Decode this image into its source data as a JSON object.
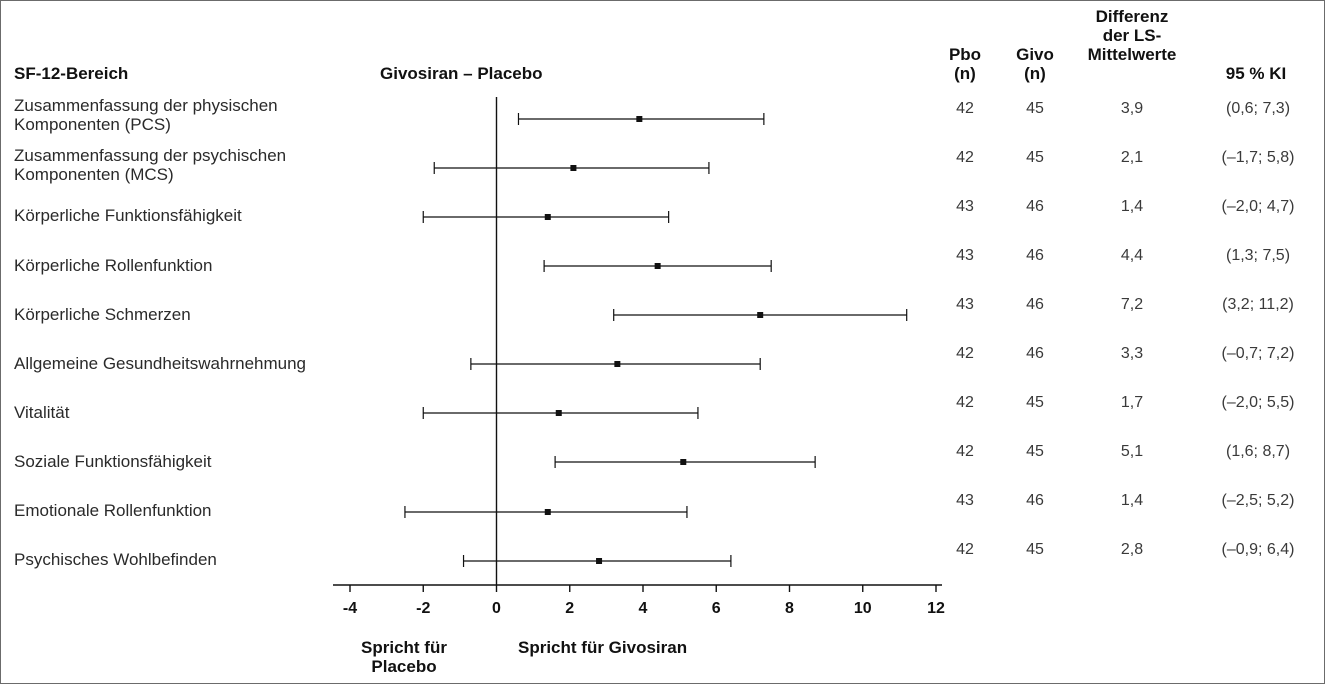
{
  "headers": {
    "domain": "SF-12-Bereich",
    "comparison": "Givosiran – Placebo",
    "pbo": "Pbo\n(n)",
    "givo": "Givo\n(n)",
    "diff": "Differenz\nder LS-\nMittelwerte",
    "ci": "95 % KI"
  },
  "favors": {
    "placebo": "Spricht für\nPlacebo",
    "givosiran": "Spricht für Givosiran"
  },
  "colors": {
    "line": "#111111",
    "frame": "#6b6b6b",
    "text": "#2a2a2a"
  },
  "chart_data": {
    "type": "forest",
    "xlim": [
      -4,
      12
    ],
    "xticks": [
      -4,
      -2,
      0,
      2,
      4,
      6,
      8,
      10,
      12
    ],
    "reference_line": 0,
    "rows": [
      {
        "label": "Zusammenfassung der physischen\nKomponenten (PCS)",
        "pbo_n": "42",
        "givo_n": "45",
        "diff": 3.9,
        "lo": 0.6,
        "hi": 7.3,
        "diff_text": "3,9",
        "ci_text": "(0,6; 7,3)"
      },
      {
        "label": "Zusammenfassung der psychischen\nKomponenten (MCS)",
        "pbo_n": "42",
        "givo_n": "45",
        "diff": 2.1,
        "lo": -1.7,
        "hi": 5.8,
        "diff_text": "2,1",
        "ci_text": "(–1,7; 5,8)"
      },
      {
        "label": "Körperliche Funktionsfähigkeit",
        "pbo_n": "43",
        "givo_n": "46",
        "diff": 1.4,
        "lo": -2.0,
        "hi": 4.7,
        "diff_text": "1,4",
        "ci_text": "(–2,0; 4,7)"
      },
      {
        "label": "Körperliche Rollenfunktion",
        "pbo_n": "43",
        "givo_n": "46",
        "diff": 4.4,
        "lo": 1.3,
        "hi": 7.5,
        "diff_text": "4,4",
        "ci_text": "(1,3; 7,5)"
      },
      {
        "label": "Körperliche Schmerzen",
        "pbo_n": "43",
        "givo_n": "46",
        "diff": 7.2,
        "lo": 3.2,
        "hi": 11.2,
        "diff_text": "7,2",
        "ci_text": "(3,2; 11,2)"
      },
      {
        "label": "Allgemeine Gesundheitswahrnehmung",
        "pbo_n": "42",
        "givo_n": "46",
        "diff": 3.3,
        "lo": -0.7,
        "hi": 7.2,
        "diff_text": "3,3",
        "ci_text": "(–0,7; 7,2)"
      },
      {
        "label": "Vitalität",
        "pbo_n": "42",
        "givo_n": "45",
        "diff": 1.7,
        "lo": -2.0,
        "hi": 5.5,
        "diff_text": "1,7",
        "ci_text": "(–2,0; 5,5)"
      },
      {
        "label": "Soziale Funktionsfähigkeit",
        "pbo_n": "42",
        "givo_n": "45",
        "diff": 5.1,
        "lo": 1.6,
        "hi": 8.7,
        "diff_text": "5,1",
        "ci_text": "(1,6; 8,7)"
      },
      {
        "label": "Emotionale Rollenfunktion",
        "pbo_n": "43",
        "givo_n": "46",
        "diff": 1.4,
        "lo": -2.5,
        "hi": 5.2,
        "diff_text": "1,4",
        "ci_text": "(–2,5; 5,2)"
      },
      {
        "label": "Psychisches Wohlbefinden",
        "pbo_n": "42",
        "givo_n": "45",
        "diff": 2.8,
        "lo": -0.9,
        "hi": 6.4,
        "diff_text": "2,8",
        "ci_text": "(–0,9; 6,4)"
      }
    ]
  }
}
